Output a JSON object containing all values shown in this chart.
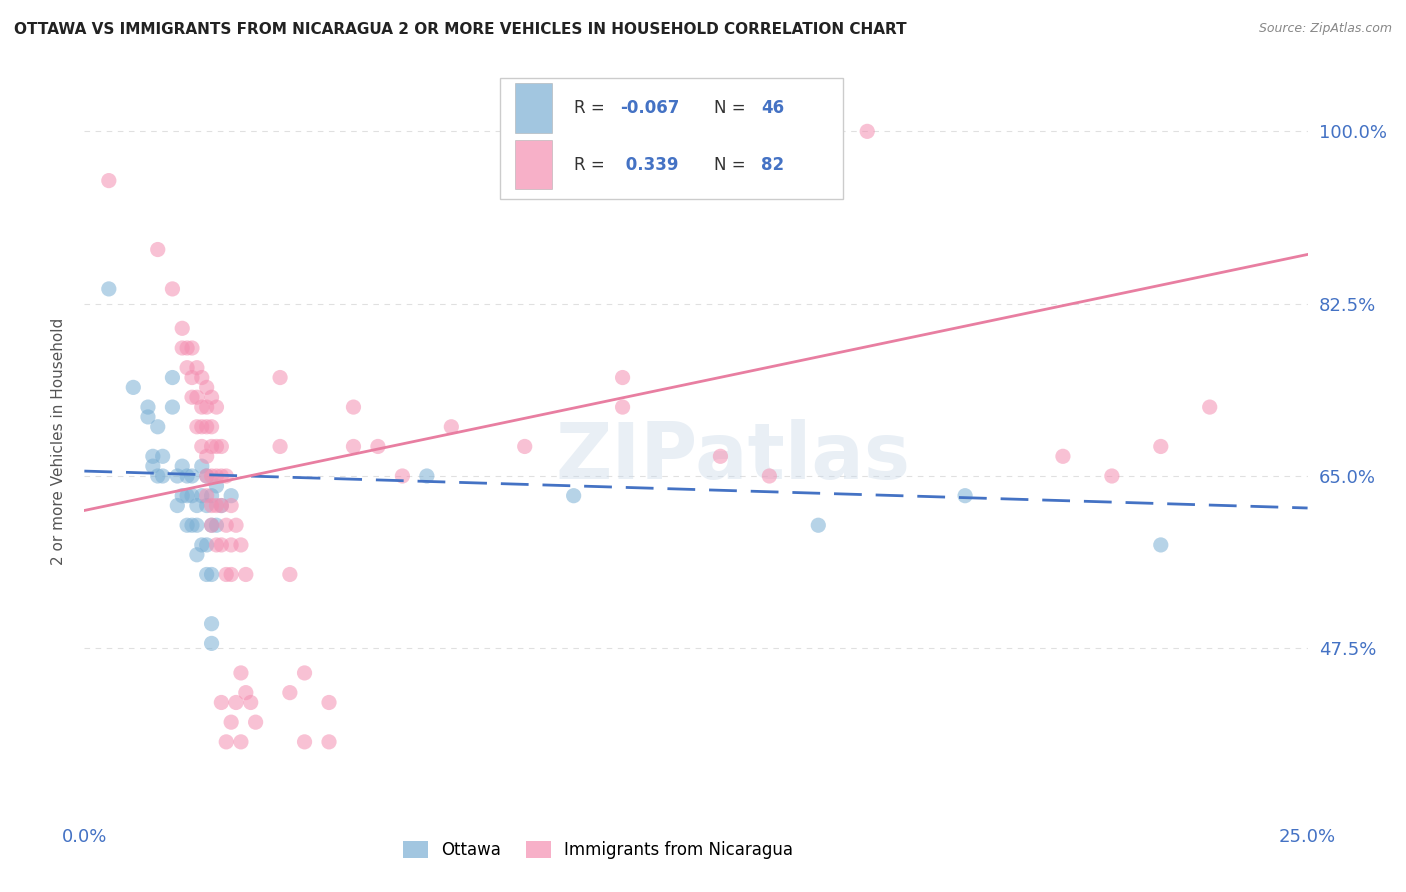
{
  "title": "OTTAWA VS IMMIGRANTS FROM NICARAGUA 2 OR MORE VEHICLES IN HOUSEHOLD CORRELATION CHART",
  "source": "Source: ZipAtlas.com",
  "xlabel_bottom_left": "0.0%",
  "xlabel_bottom_right": "25.0%",
  "ylabel": "2 or more Vehicles in Household",
  "ytick_labels": [
    "47.5%",
    "65.0%",
    "82.5%",
    "100.0%"
  ],
  "ytick_values": [
    0.475,
    0.65,
    0.825,
    1.0
  ],
  "xlim": [
    0.0,
    0.25
  ],
  "ylim": [
    0.3,
    1.07
  ],
  "bg_color": "#ffffff",
  "grid_color": "#e0e0e0",
  "watermark": "ZIPatlas",
  "ottawa_color": "#7bafd4",
  "nicaragua_color": "#f48fb1",
  "ottawa_line_color": "#4472c4",
  "nicaragua_line_color": "#e87ea1",
  "title_color": "#222222",
  "axis_label_color": "#4472c4",
  "legend_r_color": "#4472c4",
  "ottawa_points": [
    [
      0.005,
      0.84
    ],
    [
      0.01,
      0.74
    ],
    [
      0.013,
      0.72
    ],
    [
      0.013,
      0.71
    ],
    [
      0.014,
      0.67
    ],
    [
      0.014,
      0.66
    ],
    [
      0.015,
      0.7
    ],
    [
      0.015,
      0.65
    ],
    [
      0.016,
      0.67
    ],
    [
      0.016,
      0.65
    ],
    [
      0.018,
      0.75
    ],
    [
      0.018,
      0.72
    ],
    [
      0.019,
      0.65
    ],
    [
      0.019,
      0.62
    ],
    [
      0.02,
      0.66
    ],
    [
      0.02,
      0.63
    ],
    [
      0.021,
      0.65
    ],
    [
      0.021,
      0.63
    ],
    [
      0.021,
      0.6
    ],
    [
      0.022,
      0.65
    ],
    [
      0.022,
      0.63
    ],
    [
      0.022,
      0.6
    ],
    [
      0.023,
      0.62
    ],
    [
      0.023,
      0.6
    ],
    [
      0.023,
      0.57
    ],
    [
      0.024,
      0.66
    ],
    [
      0.024,
      0.63
    ],
    [
      0.024,
      0.58
    ],
    [
      0.025,
      0.65
    ],
    [
      0.025,
      0.62
    ],
    [
      0.025,
      0.58
    ],
    [
      0.025,
      0.55
    ],
    [
      0.026,
      0.63
    ],
    [
      0.026,
      0.6
    ],
    [
      0.026,
      0.55
    ],
    [
      0.026,
      0.5
    ],
    [
      0.026,
      0.48
    ],
    [
      0.027,
      0.64
    ],
    [
      0.027,
      0.6
    ],
    [
      0.028,
      0.62
    ],
    [
      0.03,
      0.63
    ],
    [
      0.07,
      0.65
    ],
    [
      0.1,
      0.63
    ],
    [
      0.15,
      0.6
    ],
    [
      0.18,
      0.63
    ],
    [
      0.22,
      0.58
    ]
  ],
  "nicaragua_points": [
    [
      0.005,
      0.95
    ],
    [
      0.015,
      0.88
    ],
    [
      0.018,
      0.84
    ],
    [
      0.02,
      0.8
    ],
    [
      0.02,
      0.78
    ],
    [
      0.021,
      0.78
    ],
    [
      0.021,
      0.76
    ],
    [
      0.022,
      0.78
    ],
    [
      0.022,
      0.75
    ],
    [
      0.022,
      0.73
    ],
    [
      0.023,
      0.76
    ],
    [
      0.023,
      0.73
    ],
    [
      0.023,
      0.7
    ],
    [
      0.024,
      0.75
    ],
    [
      0.024,
      0.72
    ],
    [
      0.024,
      0.7
    ],
    [
      0.024,
      0.68
    ],
    [
      0.025,
      0.74
    ],
    [
      0.025,
      0.72
    ],
    [
      0.025,
      0.7
    ],
    [
      0.025,
      0.67
    ],
    [
      0.025,
      0.65
    ],
    [
      0.025,
      0.63
    ],
    [
      0.026,
      0.73
    ],
    [
      0.026,
      0.7
    ],
    [
      0.026,
      0.68
    ],
    [
      0.026,
      0.65
    ],
    [
      0.026,
      0.62
    ],
    [
      0.026,
      0.6
    ],
    [
      0.027,
      0.72
    ],
    [
      0.027,
      0.68
    ],
    [
      0.027,
      0.65
    ],
    [
      0.027,
      0.62
    ],
    [
      0.027,
      0.58
    ],
    [
      0.028,
      0.68
    ],
    [
      0.028,
      0.65
    ],
    [
      0.028,
      0.62
    ],
    [
      0.028,
      0.58
    ],
    [
      0.028,
      0.42
    ],
    [
      0.029,
      0.65
    ],
    [
      0.029,
      0.6
    ],
    [
      0.029,
      0.55
    ],
    [
      0.029,
      0.38
    ],
    [
      0.03,
      0.62
    ],
    [
      0.03,
      0.58
    ],
    [
      0.03,
      0.55
    ],
    [
      0.03,
      0.4
    ],
    [
      0.031,
      0.6
    ],
    [
      0.031,
      0.42
    ],
    [
      0.032,
      0.58
    ],
    [
      0.032,
      0.45
    ],
    [
      0.032,
      0.38
    ],
    [
      0.033,
      0.55
    ],
    [
      0.033,
      0.43
    ],
    [
      0.034,
      0.42
    ],
    [
      0.035,
      0.4
    ],
    [
      0.04,
      0.75
    ],
    [
      0.04,
      0.68
    ],
    [
      0.042,
      0.55
    ],
    [
      0.042,
      0.43
    ],
    [
      0.045,
      0.45
    ],
    [
      0.045,
      0.38
    ],
    [
      0.05,
      0.42
    ],
    [
      0.05,
      0.38
    ],
    [
      0.055,
      0.72
    ],
    [
      0.055,
      0.68
    ],
    [
      0.06,
      0.68
    ],
    [
      0.065,
      0.65
    ],
    [
      0.075,
      0.7
    ],
    [
      0.09,
      0.68
    ],
    [
      0.11,
      0.75
    ],
    [
      0.11,
      0.72
    ],
    [
      0.13,
      0.67
    ],
    [
      0.14,
      0.65
    ],
    [
      0.16,
      1.0
    ],
    [
      0.2,
      0.67
    ],
    [
      0.21,
      0.65
    ],
    [
      0.22,
      0.68
    ],
    [
      0.23,
      0.72
    ]
  ]
}
